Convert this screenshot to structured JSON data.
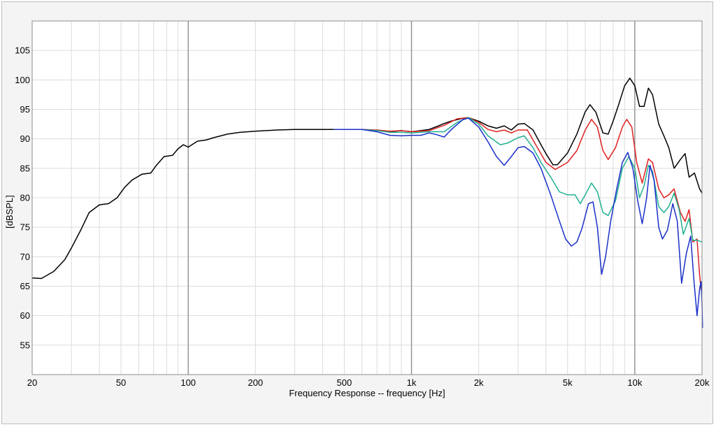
{
  "chart_data": {
    "type": "line",
    "title": "",
    "xlabel": "Frequency Response -- frequency [Hz]",
    "ylabel": "[dBSPL]",
    "x_scale": "log",
    "xlim": [
      20,
      20000
    ],
    "ylim": [
      50,
      110
    ],
    "grid": true,
    "x_ticks": [
      {
        "v": 20,
        "label": "20"
      },
      {
        "v": 50,
        "label": "50"
      },
      {
        "v": 100,
        "label": "100"
      },
      {
        "v": 200,
        "label": "200"
      },
      {
        "v": 500,
        "label": "500"
      },
      {
        "v": 1000,
        "label": "1k"
      },
      {
        "v": 2000,
        "label": "2k"
      },
      {
        "v": 5000,
        "label": "5k"
      },
      {
        "v": 10000,
        "label": "10k"
      },
      {
        "v": 20000,
        "label": "20k"
      }
    ],
    "y_ticks": [
      55,
      60,
      65,
      70,
      75,
      80,
      85,
      90,
      95,
      100,
      105
    ],
    "series": [
      {
        "color": "#000000",
        "points": [
          [
            20,
            66.4
          ],
          [
            22,
            66.3
          ],
          [
            25,
            67.5
          ],
          [
            28,
            69.5
          ],
          [
            30,
            71.5
          ],
          [
            33,
            74.5
          ],
          [
            36,
            77.5
          ],
          [
            40,
            78.8
          ],
          [
            44,
            79.0
          ],
          [
            48,
            80.0
          ],
          [
            52,
            81.8
          ],
          [
            56,
            83.0
          ],
          [
            62,
            84.0
          ],
          [
            68,
            84.2
          ],
          [
            72,
            85.5
          ],
          [
            78,
            87.0
          ],
          [
            85,
            87.2
          ],
          [
            90,
            88.3
          ],
          [
            95,
            89.0
          ],
          [
            100,
            88.6
          ],
          [
            110,
            89.6
          ],
          [
            120,
            89.8
          ],
          [
            130,
            90.2
          ],
          [
            150,
            90.8
          ],
          [
            170,
            91.1
          ],
          [
            200,
            91.3
          ],
          [
            250,
            91.5
          ],
          [
            300,
            91.6
          ],
          [
            400,
            91.6
          ],
          [
            500,
            91.6
          ],
          [
            600,
            91.6
          ],
          [
            700,
            91.4
          ],
          [
            800,
            91.2
          ],
          [
            900,
            91.4
          ],
          [
            1000,
            91.2
          ],
          [
            1100,
            91.4
          ],
          [
            1200,
            91.6
          ],
          [
            1300,
            92.1
          ],
          [
            1400,
            92.6
          ],
          [
            1500,
            93.0
          ],
          [
            1700,
            93.5
          ],
          [
            1800,
            93.6
          ],
          [
            2000,
            93.0
          ],
          [
            2200,
            92.2
          ],
          [
            2400,
            91.8
          ],
          [
            2600,
            92.2
          ],
          [
            2800,
            91.5
          ],
          [
            3000,
            92.5
          ],
          [
            3200,
            92.6
          ],
          [
            3500,
            91.5
          ],
          [
            3800,
            89.0
          ],
          [
            4000,
            87.5
          ],
          [
            4300,
            85.6
          ],
          [
            4500,
            85.6
          ],
          [
            5000,
            87.6
          ],
          [
            5500,
            90.8
          ],
          [
            6000,
            94.6
          ],
          [
            6300,
            95.8
          ],
          [
            6700,
            94.5
          ],
          [
            7200,
            91.0
          ],
          [
            7600,
            90.8
          ],
          [
            8000,
            93.0
          ],
          [
            8500,
            96.0
          ],
          [
            9000,
            99.0
          ],
          [
            9500,
            100.3
          ],
          [
            10000,
            99.0
          ],
          [
            10500,
            95.5
          ],
          [
            11000,
            95.5
          ],
          [
            11500,
            98.6
          ],
          [
            12000,
            97.5
          ],
          [
            12800,
            92.5
          ],
          [
            13500,
            90.5
          ],
          [
            14200,
            88.5
          ],
          [
            15000,
            85.0
          ],
          [
            16000,
            86.5
          ],
          [
            16800,
            87.5
          ],
          [
            17500,
            83.5
          ],
          [
            18500,
            84.2
          ],
          [
            19500,
            81.5
          ],
          [
            20000,
            80.8
          ]
        ]
      },
      {
        "color": "#dd2020",
        "points": [
          [
            450,
            91.6
          ],
          [
            500,
            91.6
          ],
          [
            600,
            91.6
          ],
          [
            700,
            91.5
          ],
          [
            800,
            91.3
          ],
          [
            900,
            91.4
          ],
          [
            1000,
            91.2
          ],
          [
            1200,
            91.4
          ],
          [
            1400,
            92.3
          ],
          [
            1600,
            93.4
          ],
          [
            1800,
            93.6
          ],
          [
            2000,
            92.8
          ],
          [
            2200,
            91.6
          ],
          [
            2400,
            91.2
          ],
          [
            2600,
            91.5
          ],
          [
            2800,
            91.0
          ],
          [
            3000,
            91.5
          ],
          [
            3300,
            91.5
          ],
          [
            3600,
            89.0
          ],
          [
            4000,
            86.0
          ],
          [
            4400,
            84.8
          ],
          [
            5000,
            86.0
          ],
          [
            5500,
            88.0
          ],
          [
            6000,
            91.5
          ],
          [
            6400,
            93.3
          ],
          [
            6800,
            92.0
          ],
          [
            7200,
            88.0
          ],
          [
            7600,
            86.5
          ],
          [
            8200,
            88.5
          ],
          [
            8800,
            92.0
          ],
          [
            9200,
            93.3
          ],
          [
            9700,
            92.0
          ],
          [
            10200,
            86.0
          ],
          [
            10800,
            82.5
          ],
          [
            11500,
            86.6
          ],
          [
            12000,
            86.0
          ],
          [
            12800,
            81.5
          ],
          [
            13500,
            80.0
          ],
          [
            14200,
            80.5
          ],
          [
            15000,
            81.5
          ],
          [
            16000,
            77.5
          ],
          [
            16800,
            76.0
          ],
          [
            17500,
            78.0
          ],
          [
            18200,
            72.5
          ],
          [
            19000,
            73.0
          ],
          [
            19500,
            67.0
          ],
          [
            19800,
            64.5
          ],
          [
            20000,
            65.0
          ]
        ]
      },
      {
        "color": "#20b090",
        "points": [
          [
            450,
            91.6
          ],
          [
            500,
            91.6
          ],
          [
            600,
            91.6
          ],
          [
            700,
            91.4
          ],
          [
            800,
            91.1
          ],
          [
            900,
            91.1
          ],
          [
            1000,
            91.0
          ],
          [
            1200,
            91.2
          ],
          [
            1400,
            91.2
          ],
          [
            1600,
            92.8
          ],
          [
            1800,
            93.6
          ],
          [
            2000,
            92.5
          ],
          [
            2200,
            90.5
          ],
          [
            2500,
            89.0
          ],
          [
            2700,
            89.3
          ],
          [
            3000,
            90.2
          ],
          [
            3200,
            90.5
          ],
          [
            3500,
            88.5
          ],
          [
            3800,
            86.0
          ],
          [
            4200,
            83.5
          ],
          [
            4600,
            81.0
          ],
          [
            5000,
            80.5
          ],
          [
            5400,
            80.5
          ],
          [
            5700,
            79.0
          ],
          [
            6000,
            80.5
          ],
          [
            6400,
            82.5
          ],
          [
            6800,
            81.0
          ],
          [
            7200,
            77.5
          ],
          [
            7600,
            77.0
          ],
          [
            8200,
            79.5
          ],
          [
            8800,
            85.0
          ],
          [
            9400,
            87.0
          ],
          [
            10000,
            85.0
          ],
          [
            10500,
            80.0
          ],
          [
            11000,
            82.0
          ],
          [
            11500,
            85.5
          ],
          [
            12000,
            84.5
          ],
          [
            12800,
            78.5
          ],
          [
            13500,
            77.5
          ],
          [
            14200,
            78.5
          ],
          [
            15000,
            80.8
          ],
          [
            15800,
            78.0
          ],
          [
            16500,
            73.8
          ],
          [
            17500,
            76.5
          ],
          [
            18200,
            72.8
          ],
          [
            19000,
            72.8
          ],
          [
            20000,
            72.5
          ]
        ]
      },
      {
        "color": "#1a2fc8",
        "points": [
          [
            450,
            91.6
          ],
          [
            500,
            91.6
          ],
          [
            600,
            91.6
          ],
          [
            700,
            91.2
          ],
          [
            800,
            90.6
          ],
          [
            900,
            90.5
          ],
          [
            1000,
            90.6
          ],
          [
            1100,
            90.6
          ],
          [
            1200,
            91.0
          ],
          [
            1300,
            90.7
          ],
          [
            1400,
            90.3
          ],
          [
            1500,
            91.5
          ],
          [
            1700,
            93.3
          ],
          [
            1800,
            93.5
          ],
          [
            2000,
            92.0
          ],
          [
            2200,
            89.5
          ],
          [
            2400,
            87.0
          ],
          [
            2600,
            85.5
          ],
          [
            2800,
            87.0
          ],
          [
            3000,
            88.5
          ],
          [
            3200,
            88.7
          ],
          [
            3500,
            87.6
          ],
          [
            3800,
            85.0
          ],
          [
            4200,
            80.5
          ],
          [
            4600,
            76.0
          ],
          [
            4900,
            73.0
          ],
          [
            5200,
            71.8
          ],
          [
            5500,
            72.5
          ],
          [
            5800,
            74.8
          ],
          [
            6200,
            79.0
          ],
          [
            6500,
            79.3
          ],
          [
            6800,
            75.0
          ],
          [
            7100,
            67.0
          ],
          [
            7400,
            70.0
          ],
          [
            7800,
            76.0
          ],
          [
            8300,
            81.5
          ],
          [
            8800,
            86.0
          ],
          [
            9300,
            87.7
          ],
          [
            9800,
            85.0
          ],
          [
            10300,
            79.5
          ],
          [
            10800,
            75.6
          ],
          [
            11300,
            80.0
          ],
          [
            11700,
            85.5
          ],
          [
            12200,
            83.0
          ],
          [
            12800,
            75.0
          ],
          [
            13300,
            73.0
          ],
          [
            14000,
            74.5
          ],
          [
            14800,
            79.0
          ],
          [
            15500,
            76.0
          ],
          [
            16200,
            65.5
          ],
          [
            17000,
            70.5
          ],
          [
            17800,
            73.5
          ],
          [
            18400,
            66.0
          ],
          [
            19000,
            60.0
          ],
          [
            19500,
            64.5
          ],
          [
            19800,
            65.8
          ],
          [
            20000,
            62.0
          ],
          [
            20100,
            58.0
          ]
        ]
      }
    ]
  }
}
